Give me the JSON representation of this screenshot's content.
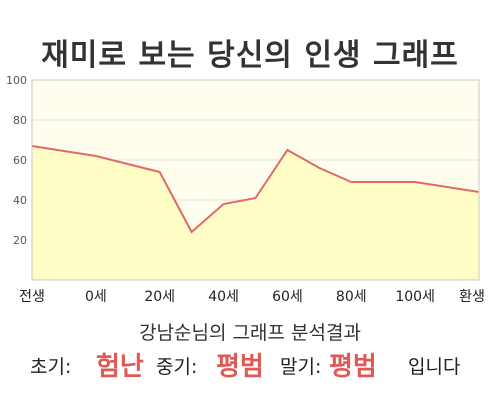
{
  "title": "재미로 보는 당신의 인생 그래프",
  "summary": "강남순님의 그래프 분석결과",
  "verdict": {
    "early_label": "초기:",
    "early_value": "험난",
    "mid_label": "중기:",
    "mid_value": "평범",
    "late_label": "말기:",
    "late_value": "평범",
    "suffix": "입니다"
  },
  "colors": {
    "line": "#e06a66",
    "fill": "#fffdc6",
    "plot_bg": "#fffeee",
    "accent": "#e05a55"
  },
  "chart_data": {
    "type": "area",
    "x_tick_labels": [
      "전생",
      "0세",
      "20세",
      "40세",
      "60세",
      "80세",
      "100세",
      "환생"
    ],
    "x": [
      -20,
      0,
      20,
      30,
      40,
      50,
      60,
      70,
      80,
      90,
      100,
      120
    ],
    "y": [
      67,
      62,
      54,
      24,
      38,
      41,
      65,
      56,
      49,
      49,
      49,
      44
    ],
    "xlim": [
      -20,
      120
    ],
    "ylim": [
      0,
      100
    ],
    "yticks": [
      20,
      40,
      60,
      80,
      100
    ],
    "grid": true
  }
}
